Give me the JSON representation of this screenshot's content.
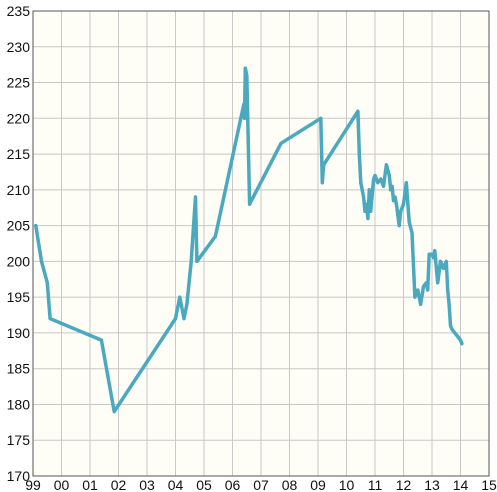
{
  "chart_data": {
    "type": "line",
    "title": "",
    "xlabel": "",
    "ylabel": "",
    "xlim": [
      1999,
      2015
    ],
    "ylim": [
      170,
      235
    ],
    "grid": true,
    "x_tick_labels": [
      "99",
      "00",
      "01",
      "02",
      "03",
      "04",
      "05",
      "06",
      "07",
      "08",
      "09",
      "10",
      "11",
      "12",
      "13",
      "14",
      "15"
    ],
    "y_tick_labels": [
      "170",
      "175",
      "180",
      "185",
      "190",
      "195",
      "200",
      "205",
      "210",
      "215",
      "220",
      "225",
      "230",
      "235"
    ],
    "colors": {
      "background": "#fefdf6",
      "grid": "#c8c8c8",
      "axis": "#555555",
      "line": "#4aa8bf"
    },
    "series": [
      {
        "x": [
          1999.1,
          1999.3,
          1999.5,
          1999.6,
          2001.4,
          2001.85,
          2004.0,
          2004.05,
          2004.15,
          2004.3,
          2004.4,
          2004.55,
          2004.7,
          2004.75,
          2005.4,
          2006.4,
          2006.42,
          2006.45,
          2006.5,
          2006.6,
          2007.7,
          2009.1,
          2009.15,
          2009.2,
          2010.4,
          2010.45,
          2010.5,
          2010.6,
          2010.65,
          2010.7,
          2010.75,
          2010.8,
          2010.85,
          2010.95,
          2011.0,
          2011.1,
          2011.2,
          2011.3,
          2011.4,
          2011.5,
          2011.55,
          2011.6,
          2011.65,
          2011.7,
          2011.75,
          2011.85,
          2011.9,
          2012.0,
          2012.1,
          2012.2,
          2012.3,
          2012.4,
          2012.5,
          2012.6,
          2012.7,
          2012.8,
          2012.85,
          2012.9,
          2013.0,
          2013.05,
          2013.1,
          2013.2,
          2013.3,
          2013.4,
          2013.5,
          2013.55,
          2013.6,
          2013.65,
          2013.7,
          2013.8,
          2013.9,
          2014.0,
          2014.05
        ],
        "y": [
          205,
          200,
          197,
          192,
          189,
          179,
          192,
          193,
          195,
          192,
          194,
          200,
          209,
          200,
          203.5,
          222,
          220,
          227,
          226,
          208,
          216.5,
          220,
          211,
          213.5,
          221,
          215,
          211,
          209,
          207,
          208,
          206,
          210,
          207,
          211.5,
          212,
          211,
          211.5,
          210.5,
          213.5,
          212,
          210,
          210.5,
          208.5,
          209,
          208,
          205,
          207,
          208,
          211,
          205.5,
          204,
          195,
          196,
          194,
          196.5,
          197,
          196,
          201,
          201,
          200.5,
          201.5,
          197,
          200,
          199,
          200,
          196,
          194,
          191,
          190.5,
          190,
          189.5,
          189,
          188.5
        ]
      }
    ]
  }
}
